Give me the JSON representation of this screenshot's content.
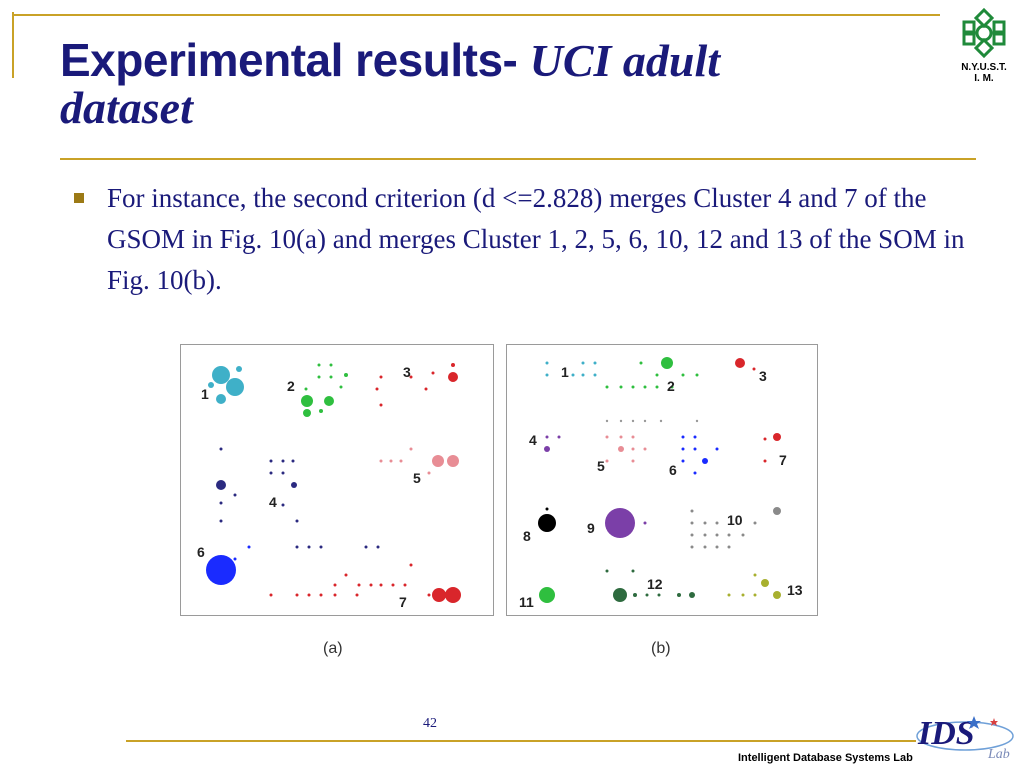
{
  "header": {
    "title_part1": "Experimental results- ",
    "title_part2": "UCI adult",
    "title_part3": "dataset"
  },
  "logo_top": {
    "text": "N.Y.U.S.T.\nI. M.",
    "icon": "snowflake-emblem-icon",
    "color": "#1f8a3a"
  },
  "bullet_text": "For instance, the second criterion (d <=2.828) merges Cluster 4 and 7 of the GSOM in Fig. 10(a) and merges Cluster 1, 2, 5, 6, 10, 12 and 13 of the SOM in Fig. 10(b).",
  "figure": {
    "panel_a": {
      "caption": "(a)",
      "labels": [
        {
          "id": "1",
          "text": "1"
        },
        {
          "id": "2",
          "text": "2"
        },
        {
          "id": "3",
          "text": "3"
        },
        {
          "id": "4",
          "text": "4"
        },
        {
          "id": "5",
          "text": "5"
        },
        {
          "id": "6",
          "text": "6"
        },
        {
          "id": "7",
          "text": "7"
        }
      ]
    },
    "panel_b": {
      "caption": "(b)",
      "labels": [
        {
          "id": "1",
          "text": "1"
        },
        {
          "id": "2",
          "text": "2"
        },
        {
          "id": "3",
          "text": "3"
        },
        {
          "id": "4",
          "text": "4"
        },
        {
          "id": "5",
          "text": "5"
        },
        {
          "id": "6",
          "text": "6"
        },
        {
          "id": "7",
          "text": "7"
        },
        {
          "id": "8",
          "text": "8"
        },
        {
          "id": "9",
          "text": "9"
        },
        {
          "id": "10",
          "text": "10"
        },
        {
          "id": "11",
          "text": "11"
        },
        {
          "id": "12",
          "text": "12"
        },
        {
          "id": "13",
          "text": "13"
        }
      ]
    }
  },
  "footer": {
    "page_number": "42",
    "lab_name": "Intelligent Database Systems Lab",
    "logo": {
      "text": "IDS",
      "subtext": "Lab",
      "icon": "ids-lab-logo-icon"
    }
  },
  "colors": {
    "title": "#1a1a7a",
    "rule": "#c9a227",
    "bullet": "#9c7a16"
  }
}
